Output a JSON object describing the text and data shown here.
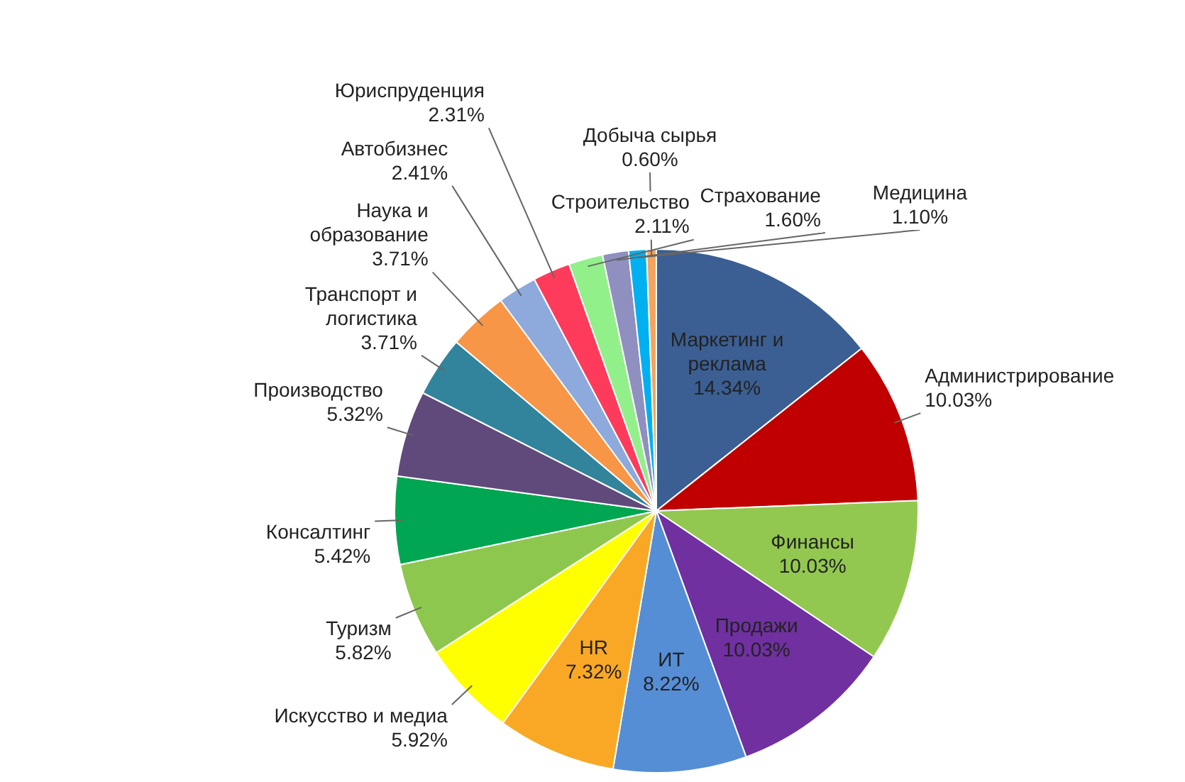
{
  "chart_data": {
    "type": "pie",
    "categories": [
      "Маркетинг и реклама",
      "Администрирование",
      "Финансы",
      "Продажи",
      "ИТ",
      "HR",
      "Искусство и медиа",
      "Туризм",
      "Консалтинг",
      "Производство",
      "Транспорт и логистика",
      "Наука и образование",
      "Автобизнес",
      "Юриспруденция",
      "Строительство",
      "Страхование",
      "Медицина",
      "Добыча сырья"
    ],
    "values": [
      14.34,
      10.03,
      10.03,
      10.03,
      8.22,
      7.32,
      5.92,
      5.82,
      5.42,
      5.32,
      3.71,
      3.71,
      2.41,
      2.31,
      2.11,
      1.6,
      1.1,
      0.6
    ],
    "value_labels": [
      "14.34%",
      "10.03%",
      "10.03%",
      "10.03%",
      "8.22%",
      "7.32%",
      "5.92%",
      "5.82%",
      "5.42%",
      "5.32%",
      "3.71%",
      "3.71%",
      "2.41%",
      "2.31%",
      "2.11%",
      "1.60%",
      "1.10%",
      "0.60%"
    ],
    "colors": [
      "#3b5f93",
      "#c00000",
      "#92c84f",
      "#7030a0",
      "#558ed5",
      "#f9a825",
      "#ffff00",
      "#8ec74e",
      "#00a651",
      "#604a7b",
      "#31849b",
      "#f79646",
      "#8ea9db",
      "#ff3b5c",
      "#92f08a",
      "#8f8fc0",
      "#00b0f0",
      "#f4a460"
    ],
    "legend": false
  }
}
